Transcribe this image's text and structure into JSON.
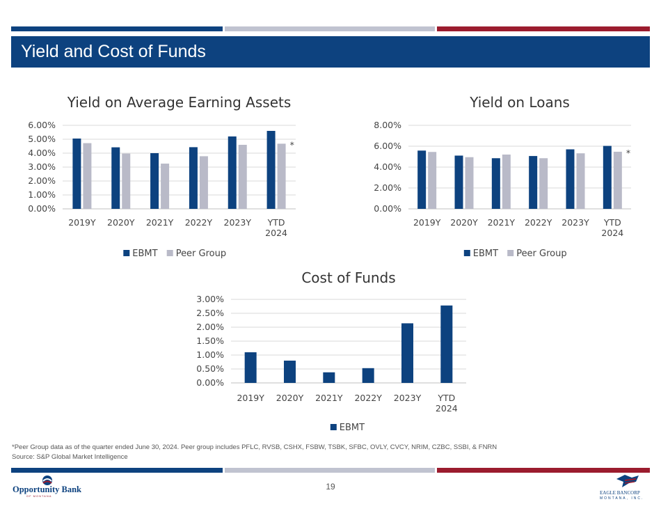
{
  "colors": {
    "navy": "#0d427f",
    "gray": "#b9bac8",
    "red": "#9b1c2e",
    "stripe_gray": "#c0c3d0"
  },
  "header": {
    "title": "Yield and Cost of Funds"
  },
  "chart_data": [
    {
      "type": "bar",
      "title": "Yield on Average Earning Assets",
      "categories": [
        "2019Y",
        "2020Y",
        "2021Y",
        "2022Y",
        "2023Y",
        "YTD 2024"
      ],
      "series": [
        {
          "name": "EBMT",
          "color": "#0d427f",
          "values": [
            5.05,
            4.42,
            4.0,
            4.43,
            5.2,
            5.6
          ]
        },
        {
          "name": "Peer Group",
          "color": "#b9bac8",
          "values": [
            4.72,
            3.97,
            3.25,
            3.78,
            4.6,
            4.68
          ]
        }
      ],
      "yticks": [
        "0.00%",
        "1.00%",
        "2.00%",
        "3.00%",
        "4.00%",
        "5.00%",
        "6.00%"
      ],
      "ylim": [
        0,
        6
      ],
      "annotation": "*"
    },
    {
      "type": "bar",
      "title": "Yield on Loans",
      "categories": [
        "2019Y",
        "2020Y",
        "2021Y",
        "2022Y",
        "2023Y",
        "YTD 2024"
      ],
      "series": [
        {
          "name": "EBMT",
          "color": "#0d427f",
          "values": [
            5.58,
            5.1,
            4.85,
            5.06,
            5.7,
            6.03
          ]
        },
        {
          "name": "Peer Group",
          "color": "#b9bac8",
          "values": [
            5.45,
            4.95,
            5.2,
            4.85,
            5.32,
            5.47
          ]
        }
      ],
      "yticks": [
        "0.00%",
        "2.00%",
        "4.00%",
        "6.00%",
        "8.00%"
      ],
      "ylim": [
        0,
        8
      ],
      "annotation": "*"
    },
    {
      "type": "bar",
      "title": "Cost of Funds",
      "categories": [
        "2019Y",
        "2020Y",
        "2021Y",
        "2022Y",
        "2023Y",
        "YTD 2024"
      ],
      "series": [
        {
          "name": "EBMT",
          "color": "#0d427f",
          "values": [
            1.1,
            0.8,
            0.38,
            0.53,
            2.14,
            2.78
          ]
        }
      ],
      "yticks": [
        "0.00%",
        "0.50%",
        "1.00%",
        "1.50%",
        "2.00%",
        "2.50%",
        "3.00%"
      ],
      "ylim": [
        0,
        3
      ],
      "annotation": ""
    }
  ],
  "footnotes": {
    "peer_note": "*Peer Group data as of the quarter ended June 30, 2024. Peer group includes PFLC, RVSB, CSHX, FSBW, TSBK, SFBC, OVLY, CVCY, NRIM, CZBC, SSBI, & FNRN",
    "source": "Source: S&P Global Market Intelligence"
  },
  "footer": {
    "page_number": "19",
    "logo_left_name": "Opportunity Bank",
    "logo_left_sub": "OF MONTANA",
    "logo_right_name": "EAGLE BANCORP",
    "logo_right_sub": "MONTANA, INC."
  }
}
